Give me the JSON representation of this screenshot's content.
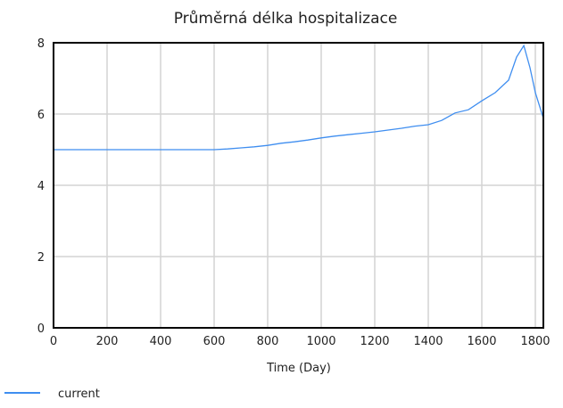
{
  "chart_data": {
    "type": "line",
    "title": "Průměrná délka hospitalizace",
    "xlabel": "Time (Day)",
    "ylabel": "",
    "xlim": [
      0,
      1830
    ],
    "ylim": [
      0,
      8
    ],
    "xticks": [
      0,
      200,
      400,
      600,
      800,
      1000,
      1200,
      1400,
      1600,
      1800
    ],
    "yticks": [
      0,
      2,
      4,
      6,
      8
    ],
    "grid": true,
    "legend_position": "bottom-left",
    "series": [
      {
        "name": "current",
        "color": "#3f8ef0",
        "x": [
          0,
          600,
          650,
          700,
          750,
          800,
          850,
          900,
          950,
          1000,
          1050,
          1100,
          1150,
          1200,
          1250,
          1300,
          1350,
          1400,
          1450,
          1500,
          1550,
          1600,
          1650,
          1700,
          1730,
          1757,
          1780,
          1800,
          1830
        ],
        "y": [
          5.0,
          5.0,
          5.02,
          5.05,
          5.08,
          5.12,
          5.18,
          5.22,
          5.27,
          5.33,
          5.38,
          5.42,
          5.46,
          5.5,
          5.55,
          5.6,
          5.66,
          5.7,
          5.82,
          6.03,
          6.12,
          6.37,
          6.6,
          6.95,
          7.6,
          7.92,
          7.3,
          6.6,
          5.88
        ]
      }
    ]
  }
}
